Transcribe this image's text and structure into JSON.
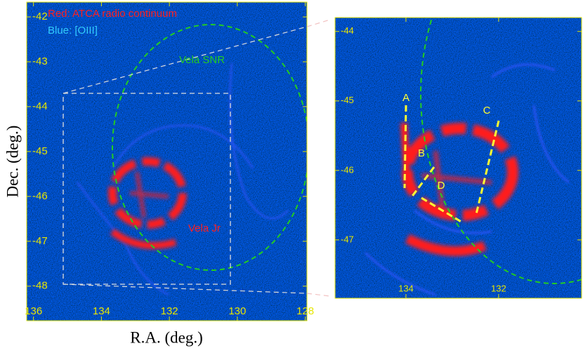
{
  "chart_data": [
    {
      "type": "image",
      "x_label": "R.A. (deg.)",
      "y_label": "Dec. (deg.)",
      "xlim": [
        136.2,
        127.95
      ],
      "ylim": [
        -48.77,
        -41.67
      ],
      "xticks": [
        136,
        134,
        132,
        130,
        128
      ],
      "yticks": [
        -42,
        -43,
        -44,
        -45,
        -46,
        -47,
        -48
      ],
      "tick_color": "#e6e600",
      "annotations": [
        {
          "text": "Red: ATCA radio continuum",
          "color": "#ff2020"
        },
        {
          "text": "Blue: [OIII]",
          "color": "#33ccff"
        },
        {
          "text": "Vela SNR",
          "color": "#22cc22"
        },
        {
          "text": "Vela Jr",
          "color": "#ff2020"
        }
      ]
    },
    {
      "type": "image",
      "xlim": [
        135.53,
        130.21
      ],
      "ylim": [
        -47.84,
        -43.8
      ],
      "xticks": [
        134,
        132
      ],
      "yticks": [
        -44,
        -45,
        -46,
        -47
      ],
      "tick_color": "#e6e600",
      "annotations": [
        {
          "text": "A",
          "color": "#ffff33"
        },
        {
          "text": "B",
          "color": "#ffff33"
        },
        {
          "text": "C",
          "color": "#ffff33"
        },
        {
          "text": "D",
          "color": "#ffff33"
        }
      ]
    }
  ]
}
